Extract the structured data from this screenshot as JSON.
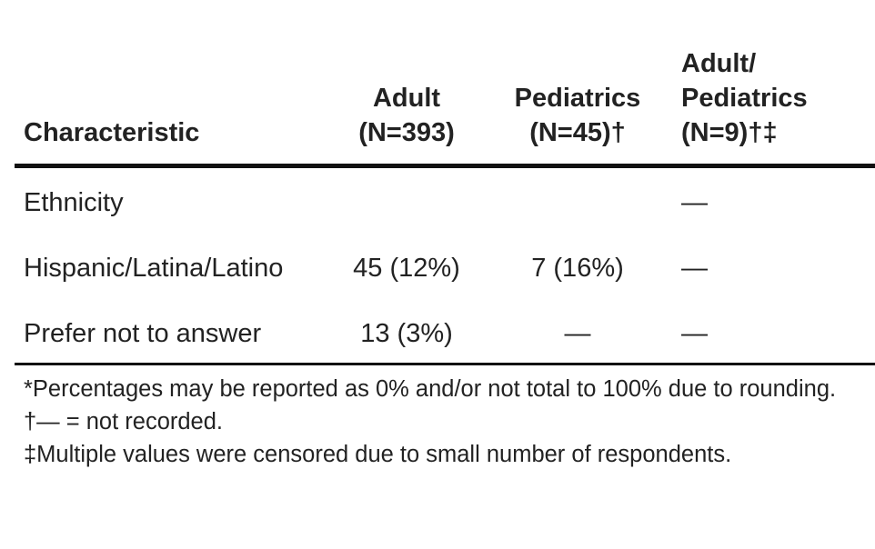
{
  "table": {
    "headers": {
      "characteristic": "Characteristic",
      "adult": [
        "Adult",
        "(N=393)"
      ],
      "pediatrics": [
        "Pediatrics",
        "(N=45)†"
      ],
      "adult_pediatrics": [
        "Adult/",
        "Pediatrics",
        "(N=9)†‡"
      ]
    },
    "rows": [
      {
        "label": "Ethnicity",
        "adult": "",
        "pediatrics": "",
        "adult_pediatrics": "—"
      },
      {
        "label": "Hispanic/Latina/Latino",
        "adult": "45 (12%)",
        "pediatrics": "7 (16%)",
        "adult_pediatrics": "—"
      },
      {
        "label": "Prefer not to answer",
        "adult": "13 (3%)",
        "pediatrics": "—",
        "adult_pediatrics": "—"
      }
    ]
  },
  "footnotes": [
    "*Percentages may be reported as 0% and/or not total to 100% due to rounding.",
    "†— = not recorded.",
    "‡Multiple values were censored due to small number of respondents."
  ]
}
